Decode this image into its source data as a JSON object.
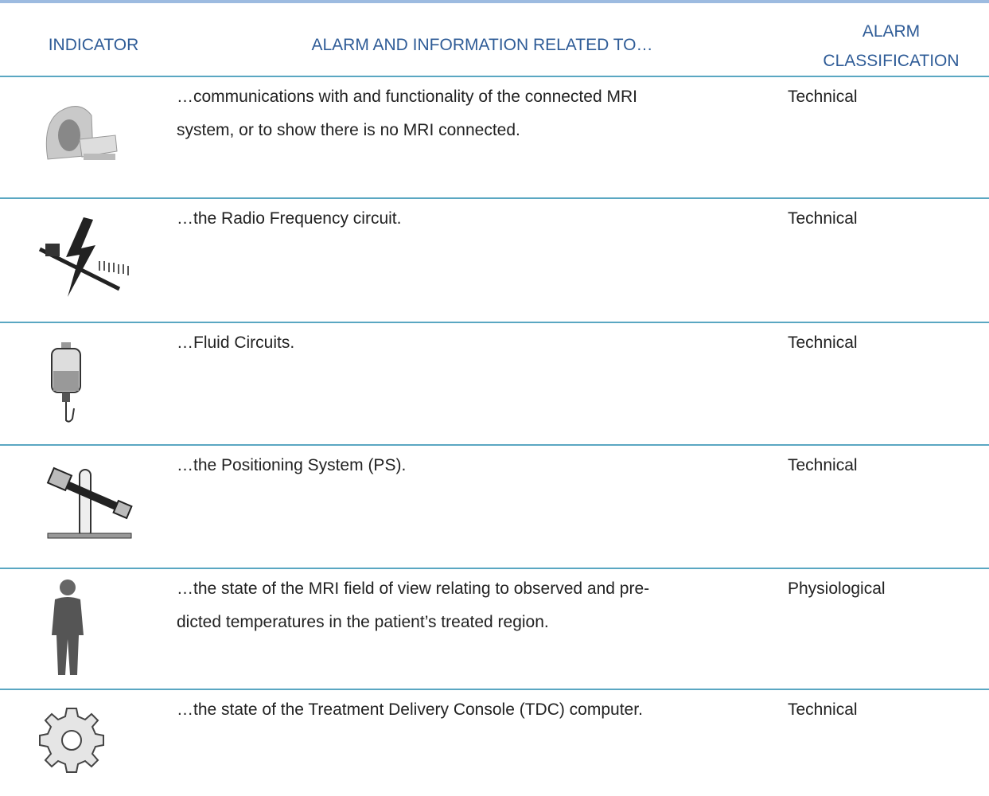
{
  "header": {
    "indicator": "INDICATOR",
    "related": "ALARM AND INFORMATION RELATED TO…",
    "classification": [
      "ALARM",
      "CLASSIFICATION"
    ]
  },
  "table": {
    "rows": [
      {
        "description": [
          "…communications with and functionality of the connected MRI",
          "system, or to show there is no MRI connected."
        ],
        "classification": "Technical"
      },
      {
        "description": [
          "…the Radio Frequency circuit."
        ],
        "classification": "Technical"
      },
      {
        "description": [
          "…Fluid Circuits."
        ],
        "classification": "Technical"
      },
      {
        "description": [
          "…the Positioning System (PS)."
        ],
        "classification": "Technical"
      },
      {
        "description": [
          "…the state of the MRI field of view relating to observed and pre-",
          "dicted temperatures in the patient’s treated region."
        ],
        "classification": "Physiological"
      },
      {
        "description": [
          "…the state of the Treatment Delivery Console (TDC) computer."
        ],
        "classification": "Technical"
      }
    ]
  }
}
